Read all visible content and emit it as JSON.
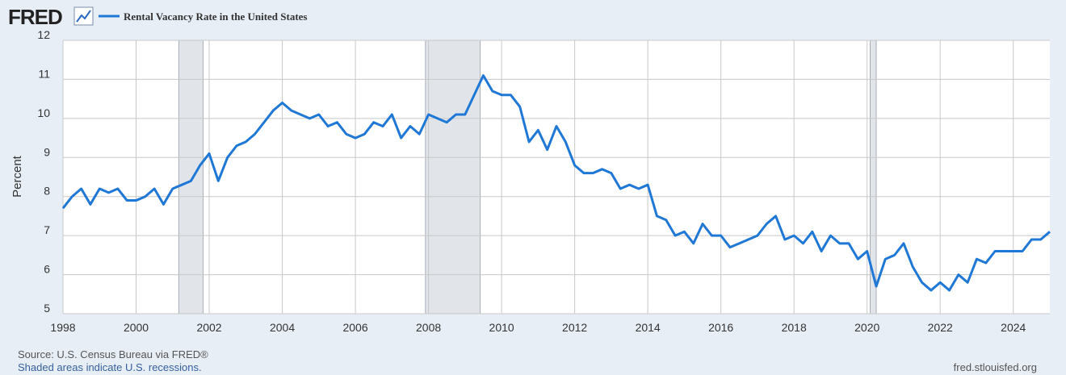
{
  "logo": "FRED",
  "chart_data": {
    "type": "line",
    "x": [
      1998,
      1998.25,
      1998.5,
      1998.75,
      1999,
      1999.25,
      1999.5,
      1999.75,
      2000,
      2000.25,
      2000.5,
      2000.75,
      2001,
      2001.25,
      2001.5,
      2001.75,
      2002,
      2002.25,
      2002.5,
      2002.75,
      2003,
      2003.25,
      2003.5,
      2003.75,
      2004,
      2004.25,
      2004.5,
      2004.75,
      2005,
      2005.25,
      2005.5,
      2005.75,
      2006,
      2006.25,
      2006.5,
      2006.75,
      2007,
      2007.25,
      2007.5,
      2007.75,
      2008,
      2008.25,
      2008.5,
      2008.75,
      2009,
      2009.25,
      2009.5,
      2009.75,
      2010,
      2010.25,
      2010.5,
      2010.75,
      2011,
      2011.25,
      2011.5,
      2011.75,
      2012,
      2012.25,
      2012.5,
      2012.75,
      2013,
      2013.25,
      2013.5,
      2013.75,
      2014,
      2014.25,
      2014.5,
      2014.75,
      2015,
      2015.25,
      2015.5,
      2015.75,
      2016,
      2016.25,
      2016.5,
      2016.75,
      2017,
      2017.25,
      2017.5,
      2017.75,
      2018,
      2018.25,
      2018.5,
      2018.75,
      2019,
      2019.25,
      2019.5,
      2019.75,
      2020,
      2020.25,
      2020.5,
      2020.75,
      2021,
      2021.25,
      2021.5,
      2021.75,
      2022,
      2022.25,
      2022.5,
      2022.75,
      2023,
      2023.25,
      2023.5,
      2023.75,
      2024,
      2024.25,
      2024.5,
      2024.75,
      2025
    ],
    "series": [
      {
        "name": "Rental Vacancy Rate in the United States",
        "color": "#1f78d6",
        "values": [
          7.7,
          8.0,
          8.2,
          7.8,
          8.2,
          8.1,
          8.2,
          7.9,
          7.9,
          8.0,
          8.2,
          7.8,
          8.2,
          8.3,
          8.4,
          8.8,
          9.1,
          8.4,
          9.0,
          9.3,
          9.4,
          9.6,
          9.9,
          10.2,
          10.4,
          10.2,
          10.1,
          10.0,
          10.1,
          9.8,
          9.9,
          9.6,
          9.5,
          9.6,
          9.9,
          9.8,
          10.1,
          9.5,
          9.8,
          9.6,
          10.1,
          10.0,
          9.9,
          10.1,
          10.1,
          10.6,
          11.1,
          10.7,
          10.6,
          10.6,
          10.3,
          9.4,
          9.7,
          9.2,
          9.8,
          9.4,
          8.8,
          8.6,
          8.6,
          8.7,
          8.6,
          8.2,
          8.3,
          8.2,
          8.3,
          7.5,
          7.4,
          7.0,
          7.1,
          6.8,
          7.3,
          7.0,
          7.0,
          6.7,
          6.8,
          6.9,
          7.0,
          7.3,
          7.5,
          6.9,
          7.0,
          6.8,
          7.1,
          6.6,
          7.0,
          6.8,
          6.8,
          6.4,
          6.6,
          5.7,
          6.4,
          6.5,
          6.8,
          6.2,
          5.8,
          5.6,
          5.8,
          5.6,
          6.0,
          5.8,
          6.4,
          6.3,
          6.6,
          6.6,
          6.6,
          6.6,
          6.9,
          6.9,
          7.1
        ]
      }
    ],
    "y_label": "Percent",
    "xlim": [
      1998,
      2025
    ],
    "xticks": [
      1998,
      2000,
      2002,
      2004,
      2006,
      2008,
      2010,
      2012,
      2014,
      2016,
      2018,
      2020,
      2022,
      2024
    ],
    "ylim": [
      5,
      12
    ],
    "yticks": [
      5,
      6,
      7,
      8,
      9,
      10,
      11,
      12
    ],
    "grid": true,
    "recessions": [
      [
        2001.167,
        2001.833
      ],
      [
        2007.917,
        2009.417
      ],
      [
        2020.083,
        2020.25
      ]
    ],
    "recession_color": "#e1e5ea",
    "source": "Source: U.S. Census Bureau via FRED®",
    "note": "Shaded areas indicate U.S. recessions.",
    "site": "fred.stlouisfed.org"
  }
}
